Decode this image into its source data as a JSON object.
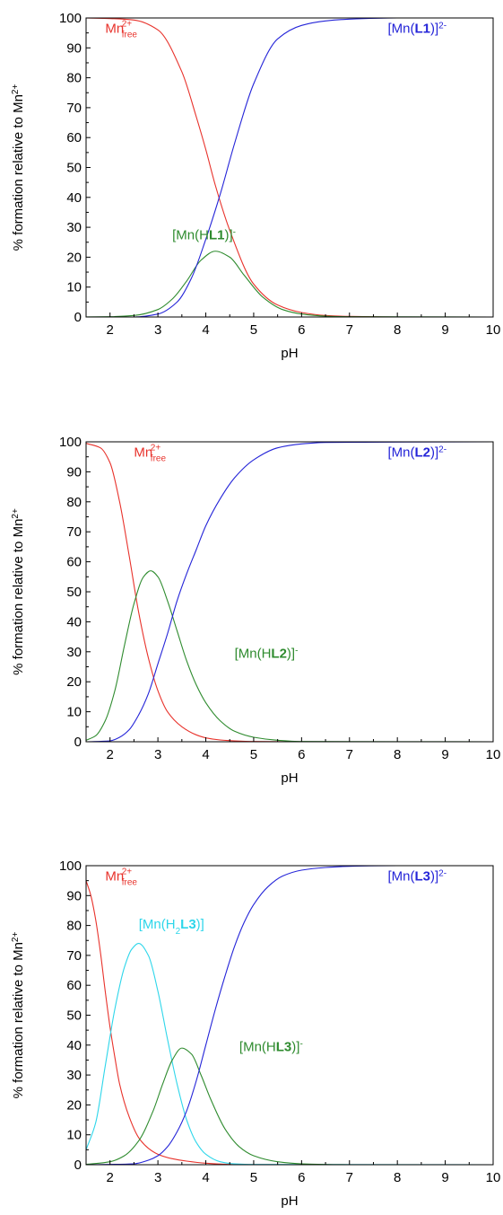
{
  "chart_data": [
    {
      "type": "line",
      "xlabel": "pH",
      "ylabel": "% formation relative to Mn",
      "ylabel_sup": "2+",
      "xlim": [
        1.5,
        10
      ],
      "ylim": [
        0,
        100
      ],
      "xticks": [
        2,
        3,
        4,
        5,
        6,
        7,
        8,
        9,
        10
      ],
      "yticks": [
        0,
        10,
        20,
        30,
        40,
        50,
        60,
        70,
        80,
        90,
        100
      ],
      "grid": false,
      "series": [
        {
          "color": "#e8322b",
          "x": [
            1.5,
            2.0,
            2.5,
            3.0,
            3.5,
            3.8,
            4.0,
            4.2,
            4.5,
            5.0,
            5.5,
            6.0,
            6.5,
            7.0,
            8.0,
            10.0
          ],
          "y": [
            100,
            99.8,
            99.3,
            96,
            82,
            67,
            56,
            44,
            29,
            11,
            4,
            1.5,
            0.5,
            0.2,
            0,
            0
          ]
        },
        {
          "color": "#2e8b2e",
          "x": [
            1.5,
            2.0,
            2.5,
            3.0,
            3.3,
            3.6,
            3.9,
            4.2,
            4.5,
            4.8,
            5.2,
            5.6,
            6.0,
            6.5,
            7.0,
            10.0
          ],
          "y": [
            0,
            0.1,
            0.5,
            2.5,
            6,
            12,
            19,
            22,
            20,
            14,
            6.5,
            2.5,
            1,
            0.3,
            0.1,
            0
          ]
        },
        {
          "color": "#2424d8",
          "x": [
            1.5,
            2.5,
            3.0,
            3.4,
            3.7,
            4.0,
            4.3,
            4.6,
            5.0,
            5.5,
            6.0,
            6.5,
            7.0,
            8.0,
            10.0
          ],
          "y": [
            0,
            0,
            1,
            5,
            13,
            26,
            41,
            58,
            78,
            93,
            97.5,
            99,
            99.6,
            100,
            100
          ]
        }
      ],
      "annotations": [
        {
          "base": "Mn",
          "sup": "2+",
          "sub": "free",
          "color": "#e8322b",
          "x": 1.9,
          "y": 95
        },
        {
          "pre": "[Mn(",
          "mid": "H",
          "bold": "L1",
          "post": ")]",
          "sup": "-",
          "color": "#2e8b2e",
          "x": 3.3,
          "y": 26
        },
        {
          "pre": "[Mn(",
          "bold": "L1",
          "post": ")]",
          "sup": "2-",
          "color": "#2424d8",
          "x": 7.8,
          "y": 95
        }
      ]
    },
    {
      "type": "line",
      "xlabel": "pH",
      "ylabel": "% formation relative to Mn",
      "ylabel_sup": "2+",
      "xlim": [
        1.5,
        10
      ],
      "ylim": [
        0,
        100
      ],
      "xticks": [
        2,
        3,
        4,
        5,
        6,
        7,
        8,
        9,
        10
      ],
      "yticks": [
        0,
        10,
        20,
        30,
        40,
        50,
        60,
        70,
        80,
        90,
        100
      ],
      "grid": false,
      "series": [
        {
          "color": "#e8322b",
          "x": [
            1.5,
            1.8,
            2.0,
            2.2,
            2.4,
            2.6,
            2.8,
            3.0,
            3.2,
            3.5,
            3.8,
            4.0,
            4.3,
            4.6,
            5.0,
            6.0,
            10.0
          ],
          "y": [
            99.5,
            98,
            93,
            80,
            62,
            43,
            28,
            17,
            10,
            5,
            2.3,
            1.3,
            0.6,
            0.3,
            0.1,
            0,
            0
          ]
        },
        {
          "color": "#2e8b2e",
          "x": [
            1.5,
            1.7,
            1.9,
            2.1,
            2.3,
            2.5,
            2.7,
            2.85,
            3.0,
            3.2,
            3.4,
            3.6,
            3.8,
            4.0,
            4.3,
            4.6,
            5.0,
            5.5,
            6.0,
            10.0
          ],
          "y": [
            0.5,
            2,
            7,
            17,
            32,
            46,
            55,
            57,
            55,
            47,
            37,
            27,
            19,
            13,
            7,
            3.5,
            1.5,
            0.5,
            0.1,
            0
          ]
        },
        {
          "color": "#2424d8",
          "x": [
            1.5,
            2.0,
            2.2,
            2.4,
            2.6,
            2.8,
            3.0,
            3.2,
            3.4,
            3.6,
            3.8,
            4.0,
            4.3,
            4.6,
            5.0,
            5.5,
            6.0,
            6.5,
            10.0
          ],
          "y": [
            0,
            0.3,
            1.5,
            4,
            9,
            16,
            26,
            36,
            47,
            56,
            64,
            72,
            81,
            88,
            94,
            98,
            99.3,
            99.8,
            100
          ]
        }
      ],
      "annotations": [
        {
          "base": "Mn",
          "sup": "2+",
          "sub": "free",
          "color": "#e8322b",
          "x": 2.5,
          "y": 95
        },
        {
          "pre": "[Mn(",
          "mid": "H",
          "bold": "L2",
          "post": ")]",
          "sup": "-",
          "color": "#2e8b2e",
          "x": 4.6,
          "y": 28
        },
        {
          "pre": "[Mn(",
          "bold": "L2",
          "post": ")]",
          "sup": "2-",
          "color": "#2424d8",
          "x": 7.8,
          "y": 95
        }
      ]
    },
    {
      "type": "line",
      "xlabel": "pH",
      "ylabel": "% formation relative to Mn",
      "ylabel_sup": "2+",
      "xlim": [
        1.5,
        10
      ],
      "ylim": [
        0,
        100
      ],
      "xticks": [
        2,
        3,
        4,
        5,
        6,
        7,
        8,
        9,
        10
      ],
      "yticks": [
        0,
        10,
        20,
        30,
        40,
        50,
        60,
        70,
        80,
        90,
        100
      ],
      "grid": false,
      "series": [
        {
          "color": "#e8322b",
          "x": [
            1.5,
            1.6,
            1.7,
            1.8,
            1.9,
            2.0,
            2.1,
            2.2,
            2.4,
            2.6,
            2.8,
            3.0,
            3.3,
            3.6,
            4.0,
            4.5,
            5.0,
            10.0
          ],
          "y": [
            95,
            90,
            82,
            71,
            58,
            46,
            36,
            27,
            16,
            9,
            5.5,
            3.5,
            2,
            1.2,
            0.5,
            0.1,
            0,
            0
          ]
        },
        {
          "color": "#2ed6ea",
          "x": [
            1.5,
            1.7,
            1.9,
            2.1,
            2.3,
            2.45,
            2.6,
            2.8,
            3.0,
            3.2,
            3.4,
            3.6,
            3.8,
            4.0,
            4.3,
            4.6,
            5.0,
            10.0
          ],
          "y": [
            5,
            14,
            33,
            52,
            66,
            72,
            74,
            70,
            58,
            42,
            27,
            15,
            7.5,
            3.5,
            1,
            0.3,
            0.1,
            0
          ]
        },
        {
          "color": "#2e8b2e",
          "x": [
            1.5,
            2.0,
            2.3,
            2.6,
            2.9,
            3.1,
            3.3,
            3.5,
            3.7,
            3.9,
            4.1,
            4.4,
            4.7,
            5.0,
            5.5,
            6.0,
            7.0,
            10.0
          ],
          "y": [
            0.1,
            1,
            3,
            8,
            18,
            27,
            35,
            39,
            37,
            30,
            22,
            12,
            6,
            3,
            1,
            0.3,
            0,
            0
          ]
        },
        {
          "color": "#2424d8",
          "x": [
            1.5,
            2.5,
            2.8,
            3.0,
            3.2,
            3.4,
            3.6,
            3.8,
            4.0,
            4.2,
            4.4,
            4.6,
            4.8,
            5.0,
            5.3,
            5.6,
            6.0,
            6.5,
            7.0,
            8.0,
            10.0
          ],
          "y": [
            0,
            0.3,
            1.5,
            3,
            6,
            11,
            18,
            28,
            40,
            52,
            63,
            73,
            81,
            87,
            93,
            96.5,
            98.5,
            99.4,
            99.8,
            100,
            100
          ]
        }
      ],
      "annotations": [
        {
          "base": "Mn",
          "sup": "2+",
          "sub": "free",
          "color": "#e8322b",
          "x": 1.9,
          "y": 95
        },
        {
          "pre": "[Mn(H",
          "sub": "2",
          "bold": "L3",
          "post": ")]",
          "color": "#2ed6ea",
          "x": 2.6,
          "y": 79
        },
        {
          "pre": "[Mn(",
          "mid": "H",
          "bold": "L3",
          "post": ")]",
          "sup": "-",
          "color": "#2e8b2e",
          "x": 4.7,
          "y": 38
        },
        {
          "pre": "[Mn(",
          "bold": "L3",
          "post": ")]",
          "sup": "2-",
          "color": "#2424d8",
          "x": 7.8,
          "y": 95
        }
      ]
    }
  ]
}
